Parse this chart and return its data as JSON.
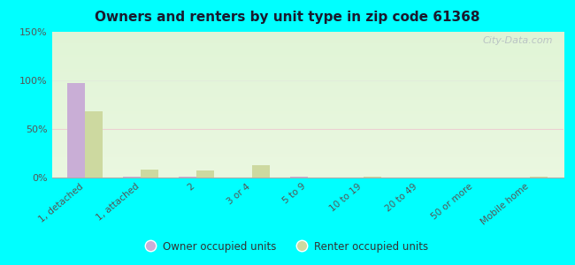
{
  "title": "Owners and renters by unit type in zip code 61368",
  "categories": [
    "1, detached",
    "1, attached",
    "2",
    "3 or 4",
    "5 to 9",
    "10 to 19",
    "20 to 49",
    "50 or more",
    "Mobile home"
  ],
  "owner_values": [
    97,
    1,
    1,
    0,
    1,
    0,
    0,
    0,
    0
  ],
  "renter_values": [
    68,
    8,
    7,
    13,
    0,
    1,
    0,
    0,
    1
  ],
  "owner_color": "#c9aed6",
  "renter_color": "#cdd9a0",
  "ylim": [
    0,
    150
  ],
  "yticks": [
    0,
    50,
    100,
    150
  ],
  "ytick_labels": [
    "0%",
    "50%",
    "100%",
    "150%"
  ],
  "background_color": "#00ffff",
  "watermark": "City-Data.com",
  "legend_owner": "Owner occupied units",
  "legend_renter": "Renter occupied units",
  "bar_width": 0.32
}
